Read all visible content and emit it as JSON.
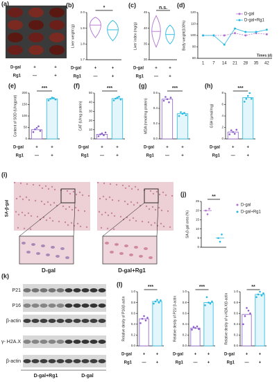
{
  "groups": {
    "labels": [
      "D-gal",
      "Rg1"
    ],
    "signs": [
      [
        "+",
        "+"
      ],
      [
        "—",
        "+"
      ]
    ]
  },
  "images": {
    "a": {
      "panel": "(a)"
    },
    "i": {
      "panel": "(i)",
      "stain": "SA-β-gal",
      "captions": [
        "D-gal",
        "D-gal+Rg1"
      ]
    },
    "k": {
      "panel": "(k)",
      "bands": [
        "P21",
        "P16",
        "β-actin",
        "γ- H2A.X",
        "β-actin"
      ],
      "lanes": [
        "D-gal+Rg1",
        "D-gal"
      ]
    }
  },
  "chart_data": [
    {
      "type": "violin",
      "panel": "(b)",
      "ylabel": "Liver weight (g)",
      "ylim": [
        1.7,
        2.0
      ],
      "yticks": [
        1.7,
        1.8,
        1.9,
        {
          "value": 2.0,
          "label": "2.0"
        }
      ],
      "colors": [
        "#b070d0",
        "#22b8e0"
      ],
      "medians": [
        1.92,
        1.89
      ],
      "mins": [
        1.84,
        1.82
      ],
      "maxs": [
        1.97,
        1.95
      ],
      "significance": "*"
    },
    {
      "type": "violin",
      "panel": "(c)",
      "ylabel": "Liver index (mg/g)",
      "ylim": [
        30,
        45
      ],
      "yticks": [
        30,
        35,
        40,
        45
      ],
      "colors": [
        "#b070d0",
        "#22b8e0"
      ],
      "medians": [
        39,
        38
      ],
      "mins": [
        34,
        35
      ],
      "maxs": [
        44,
        41
      ],
      "significance": "n.s."
    },
    {
      "type": "line",
      "panel": "(d)",
      "ylabel": "Body weight(100%)",
      "xlabel": "Times (d)",
      "categories": [
        "1",
        "7",
        "14",
        "21",
        "28",
        "35",
        "42"
      ],
      "ylim": [
        80,
        120
      ],
      "yticks": [
        80,
        90,
        100,
        110,
        120
      ],
      "series": [
        {
          "name": "D-gal",
          "color": "#b070d0",
          "values": [
            100,
            100,
            100,
            102,
            100,
            102,
            101
          ]
        },
        {
          "name": "D-gal+Rg1",
          "color": "#22b8e0",
          "values": [
            100,
            100,
            92,
            106,
            103,
            103,
            105
          ]
        }
      ]
    },
    {
      "type": "bar",
      "panel": "(e)",
      "ylabel": "Content of SOD (U/mgprot)",
      "ylim": [
        0,
        200
      ],
      "yticks": [
        0,
        50,
        100,
        150,
        200
      ],
      "colors": [
        "#8a5cc7",
        "#22b8e0"
      ],
      "values": [
        40,
        175
      ],
      "points": [
        [
          30,
          42,
          48,
          55,
          35
        ],
        [
          168,
          175,
          180,
          178,
          172
        ]
      ],
      "significance": "***"
    },
    {
      "type": "bar",
      "panel": "(f)",
      "ylabel": "CAT (U/mg protein)",
      "ylim": [
        0,
        50
      ],
      "yticks": [
        0,
        10,
        20,
        30,
        40,
        50
      ],
      "colors": [
        "#8a5cc7",
        "#22b8e0"
      ],
      "values": [
        5,
        44
      ],
      "points": [
        [
          3,
          5,
          6,
          4,
          7
        ],
        [
          42,
          44,
          45,
          46,
          43
        ]
      ],
      "significance": "***"
    },
    {
      "type": "bar",
      "panel": "(g)",
      "ylabel": "MDA (nmol/mg protein)",
      "ylim": [
        0,
        0.6
      ],
      "yticks": [
        {
          "value": 0,
          "label": "0.0"
        },
        0.2,
        0.4,
        0.6
      ],
      "colors": [
        "#8a5cc7",
        "#22b8e0"
      ],
      "values": [
        0.52,
        0.33
      ],
      "points": [
        [
          0.5,
          0.55,
          0.52,
          0.48,
          0.54
        ],
        [
          0.3,
          0.35,
          0.33,
          0.34,
          0.31
        ]
      ],
      "significance": "***"
    },
    {
      "type": "bar",
      "panel": "(h)",
      "ylabel": "GSH (μmol/mg)",
      "ylim": [
        0,
        8
      ],
      "yticks": [
        0,
        2,
        4,
        6,
        8
      ],
      "colors": [
        "#8a5cc7",
        "#22b8e0"
      ],
      "values": [
        1.2,
        7.2
      ],
      "points": [
        [
          0.8,
          1.5,
          1.2,
          0.9,
          1.6
        ],
        [
          6.5,
          7,
          7.5,
          8,
          7
        ]
      ],
      "significance": "***"
    },
    {
      "type": "dot",
      "panel": "(j)",
      "ylabel": "SA-β-gal area (%)",
      "ylim": [
        0,
        25
      ],
      "yticks": [
        0,
        5,
        10,
        15,
        20,
        25
      ],
      "series": [
        {
          "name": "D-gal",
          "color": "#b070d0",
          "mean": 20,
          "values": [
            20,
            18,
            21
          ]
        },
        {
          "name": "D-gal+Rg1",
          "color": "#22b8e0",
          "mean": 5,
          "values": [
            5,
            3,
            7
          ]
        }
      ],
      "significance": "**"
    },
    {
      "type": "bar",
      "panel": "(l)",
      "ylabel": "Relative desity of P16/β-actin",
      "ylim": [
        0,
        1
      ],
      "yticks": [
        {
          "value": 0,
          "label": "0.0"
        },
        0.2,
        0.4,
        0.6,
        0.8,
        {
          "value": 1,
          "label": "1.0"
        }
      ],
      "colors": [
        "#8a5cc7",
        "#22b8e0"
      ],
      "values": [
        0.5,
        0.82
      ],
      "points": [
        [
          0.42,
          0.5,
          0.55,
          0.47,
          0.52
        ],
        [
          0.78,
          0.82,
          0.85,
          0.8,
          0.84
        ]
      ],
      "significance": "***"
    },
    {
      "type": "bar",
      "ylabel": "Relative desity of P21/ β-actin",
      "ylim": [
        0,
        1
      ],
      "yticks": [
        {
          "value": 0,
          "label": "0.0"
        },
        0.2,
        0.4,
        0.6,
        0.8,
        {
          "value": 1,
          "label": "1.0"
        }
      ],
      "colors": [
        "#8a5cc7",
        "#22b8e0"
      ],
      "values": [
        0.33,
        0.8
      ],
      "points": [
        [
          0.3,
          0.35,
          0.33,
          0.36,
          0.31
        ],
        [
          0.75,
          0.9,
          0.8,
          0.78,
          0.82
        ]
      ],
      "significance": "***"
    },
    {
      "type": "bar",
      "ylabel": "Relative desity of γ-H2A.X/β-actin",
      "ylim": [
        0,
        1
      ],
      "yticks": [
        {
          "value": 0,
          "label": "0.0"
        },
        0.2,
        0.4,
        0.6,
        0.8,
        {
          "value": 1,
          "label": "1.0"
        }
      ],
      "colors": [
        "#8a5cc7",
        "#22b8e0"
      ],
      "values": [
        0.58,
        0.95
      ],
      "points": [
        [
          0.4,
          0.55,
          0.7,
          0.65,
          0.6
        ],
        [
          0.9,
          0.95,
          1.0,
          0.93,
          0.97
        ]
      ],
      "significance": "**"
    }
  ]
}
